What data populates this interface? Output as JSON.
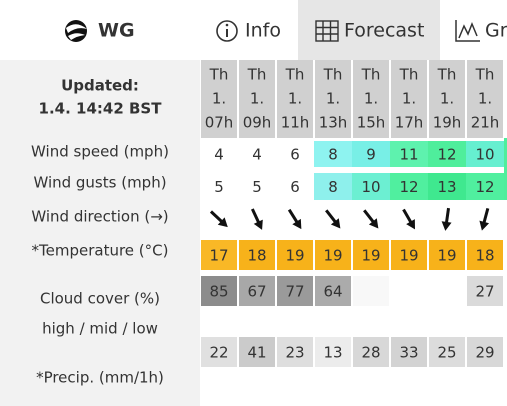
{
  "header": {
    "logo": "WG",
    "tabs": [
      "Info",
      "Forecast",
      "Gr"
    ]
  },
  "sidebar": {
    "updated_label": "Updated:",
    "updated_time": "1.4. 14:42 BST",
    "row_labels": [
      "Wind speed (mph)",
      "Wind gusts (mph)",
      "Wind direction (→)",
      "*Temperature (°C)",
      "Cloud cover (%)",
      "high / mid / low",
      "*Precip. (mm/1h)"
    ]
  },
  "table": {
    "columns": [
      {
        "day": "Th",
        "date": "1.",
        "hour": "07h"
      },
      {
        "day": "Th",
        "date": "1.",
        "hour": "09h"
      },
      {
        "day": "Th",
        "date": "1.",
        "hour": "11h"
      },
      {
        "day": "Th",
        "date": "1.",
        "hour": "13h"
      },
      {
        "day": "Th",
        "date": "1.",
        "hour": "15h"
      },
      {
        "day": "Th",
        "date": "1.",
        "hour": "17h"
      },
      {
        "day": "Th",
        "date": "1.",
        "hour": "19h"
      },
      {
        "day": "Th",
        "date": "1.",
        "hour": "21h"
      }
    ],
    "wind_speed": {
      "values": [
        4,
        4,
        6,
        8,
        9,
        11,
        12,
        10
      ],
      "colors": [
        "#ffffff",
        "#ffffff",
        "#ffffff",
        "#8ef3f0",
        "#78efe6",
        "#5ef2ae",
        "#4fee9c",
        "#66efd0"
      ]
    },
    "wind_gusts": {
      "values": [
        5,
        5,
        6,
        8,
        10,
        12,
        13,
        12
      ],
      "colors": [
        "#ffffff",
        "#ffffff",
        "#ffffff",
        "#8ef0ec",
        "#6cefd2",
        "#50ef9f",
        "#3fe88f",
        "#50ef9f"
      ]
    },
    "wind_direction": {
      "values": [
        43,
        65,
        58,
        52,
        52,
        60,
        98,
        105
      ]
    },
    "temperature": {
      "values": [
        17,
        18,
        19,
        19,
        19,
        19,
        19,
        18
      ],
      "colors": [
        "#f9b826",
        "#f7b21a",
        "#f7b21a",
        "#f7b21a",
        "#f7b21a",
        "#f7b21a",
        "#f7b21a",
        "#f7b21a"
      ]
    },
    "cloud_high": {
      "values": [
        85,
        67,
        77,
        64,
        null,
        null,
        null,
        27
      ],
      "colors": [
        "#8c8c8c",
        "#a8a8a8",
        "#9a9a9a",
        "#ababab",
        "#f8f8f8",
        "#ffffff",
        "#ffffff",
        "#dadada"
      ]
    },
    "cloud_low": {
      "values": [
        22,
        41,
        23,
        13,
        28,
        33,
        25,
        29
      ],
      "colors": [
        "#e0e0e0",
        "#cbcbcb",
        "#dedede",
        "#ececec",
        "#d8d8d8",
        "#d3d3d3",
        "#dcdcdc",
        "#d8d8d8"
      ]
    }
  }
}
